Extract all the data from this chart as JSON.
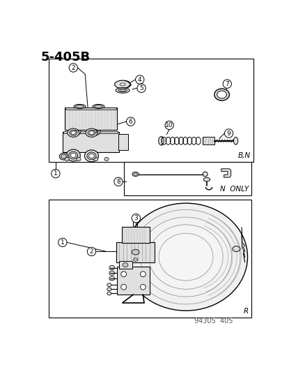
{
  "title": "5-405B",
  "bg": "#ffffff",
  "footer": "94305  405",
  "box1_tag": "B,N",
  "box2_tag": "N  ONLY",
  "box3_tag": "R",
  "lc": "black",
  "gray1": "#c8c8c8",
  "gray2": "#e0e0e0",
  "gray3": "#a0a0a0"
}
